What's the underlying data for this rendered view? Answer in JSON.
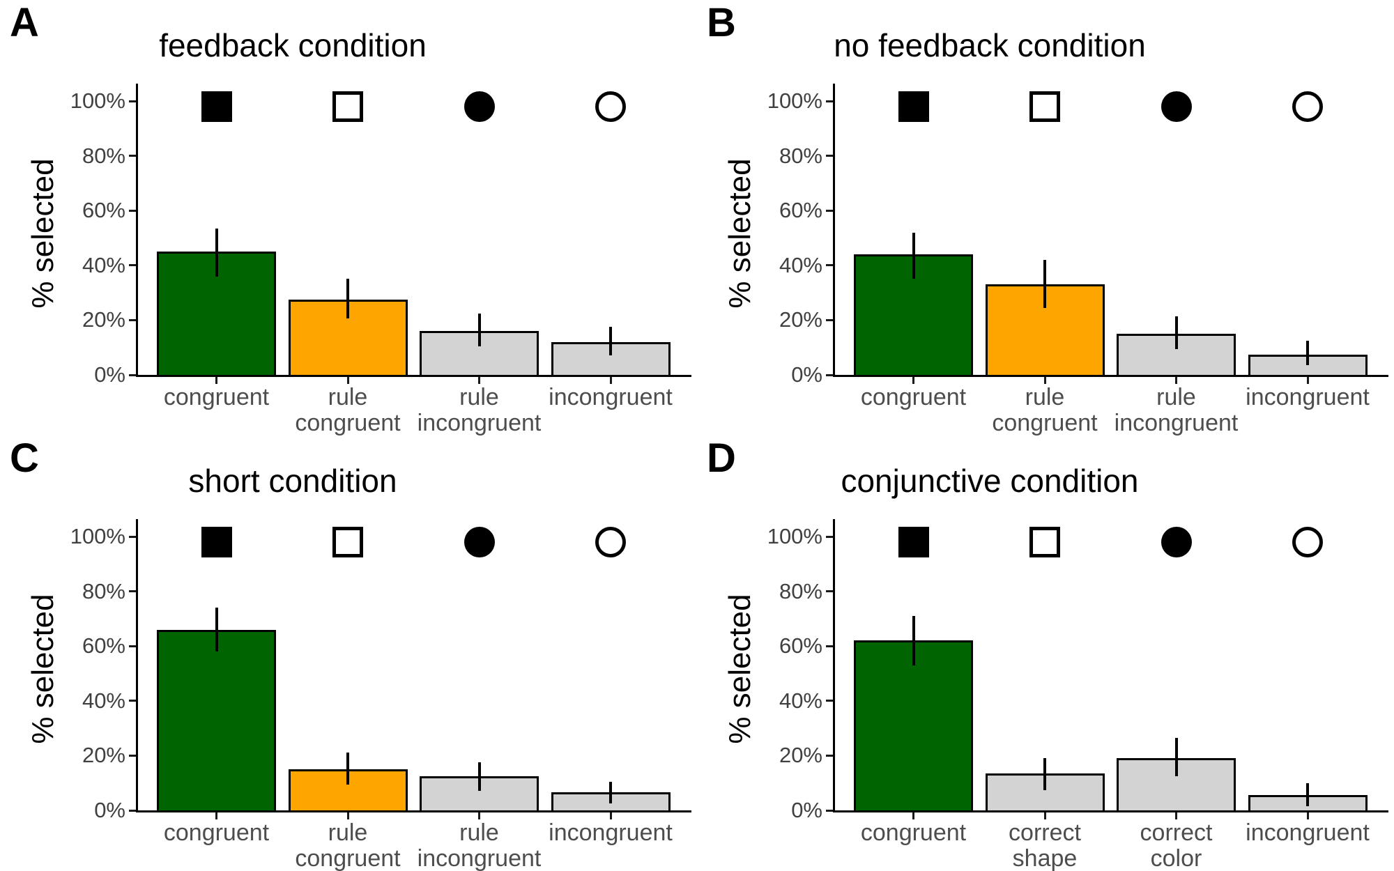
{
  "figure": {
    "background": "#ffffff",
    "accent_colors": {
      "congruent_bar": "#006400",
      "rule_congruent_bar": "#FFA500",
      "neutral_bar": "#D3D3D3",
      "bar_border": "#000000",
      "error_bar": "#000000",
      "axis_text": "#4d4d4d"
    }
  },
  "chart_data": [
    {
      "type": "bar",
      "panel_label": "A",
      "title": "feedback condition",
      "xlabel": "",
      "ylabel": "% selected",
      "ylim": [
        0,
        100
      ],
      "grid": false,
      "legend_position": "none",
      "y_tick_values": [
        0,
        20,
        40,
        60,
        80,
        100
      ],
      "y_tick_labels": [
        "0%",
        "20%",
        "40%",
        "60%",
        "80%",
        "100%"
      ],
      "categories": [
        "congruent",
        "rule congruent",
        "rule incongruent",
        "incongruent"
      ],
      "category_lines": [
        [
          "congruent"
        ],
        [
          "rule",
          "congruent"
        ],
        [
          "rule",
          "incongruent"
        ],
        [
          "incongruent"
        ]
      ],
      "values": [
        45,
        27.5,
        16,
        12
      ],
      "error_low": [
        36,
        20.5,
        10.5,
        7
      ],
      "error_high": [
        53.5,
        35,
        22.5,
        17.5
      ],
      "bar_colors": [
        "#006400",
        "#FFA500",
        "#D3D3D3",
        "#D3D3D3"
      ],
      "markers": [
        "filled-square",
        "open-square",
        "filled-circle",
        "open-circle"
      ],
      "marker_y_percent": 98
    },
    {
      "type": "bar",
      "panel_label": "B",
      "title": "no feedback condition",
      "xlabel": "",
      "ylabel": "% selected",
      "ylim": [
        0,
        100
      ],
      "grid": false,
      "legend_position": "none",
      "y_tick_values": [
        0,
        20,
        40,
        60,
        80,
        100
      ],
      "y_tick_labels": [
        "0%",
        "20%",
        "40%",
        "60%",
        "80%",
        "100%"
      ],
      "categories": [
        "congruent",
        "rule congruent",
        "rule incongruent",
        "incongruent"
      ],
      "category_lines": [
        [
          "congruent"
        ],
        [
          "rule",
          "congruent"
        ],
        [
          "rule",
          "incongruent"
        ],
        [
          "incongruent"
        ]
      ],
      "values": [
        44,
        33,
        15,
        7.5
      ],
      "error_low": [
        35,
        24.5,
        9.5,
        3.5
      ],
      "error_high": [
        52,
        42,
        21.5,
        12.5
      ],
      "bar_colors": [
        "#006400",
        "#FFA500",
        "#D3D3D3",
        "#D3D3D3"
      ],
      "markers": [
        "filled-square",
        "open-square",
        "filled-circle",
        "open-circle"
      ],
      "marker_y_percent": 98
    },
    {
      "type": "bar",
      "panel_label": "C",
      "title": "short condition",
      "xlabel": "",
      "ylabel": "% selected",
      "ylim": [
        0,
        100
      ],
      "grid": false,
      "legend_position": "none",
      "y_tick_values": [
        0,
        20,
        40,
        60,
        80,
        100
      ],
      "y_tick_labels": [
        "0%",
        "20%",
        "40%",
        "60%",
        "80%",
        "100%"
      ],
      "categories": [
        "congruent",
        "rule congruent",
        "rule incongruent",
        "incongruent"
      ],
      "category_lines": [
        [
          "congruent"
        ],
        [
          "rule",
          "congruent"
        ],
        [
          "rule",
          "incongruent"
        ],
        [
          "incongruent"
        ]
      ],
      "values": [
        66,
        15,
        12.5,
        6.5
      ],
      "error_low": [
        58,
        9.5,
        7,
        2.5
      ],
      "error_high": [
        74,
        21,
        17.5,
        10.5
      ],
      "bar_colors": [
        "#006400",
        "#FFA500",
        "#D3D3D3",
        "#D3D3D3"
      ],
      "markers": [
        "filled-square",
        "open-square",
        "filled-circle",
        "open-circle"
      ],
      "marker_y_percent": 98
    },
    {
      "type": "bar",
      "panel_label": "D",
      "title": "conjunctive condition",
      "xlabel": "",
      "ylabel": "% selected",
      "ylim": [
        0,
        100
      ],
      "grid": false,
      "legend_position": "none",
      "y_tick_values": [
        0,
        20,
        40,
        60,
        80,
        100
      ],
      "y_tick_labels": [
        "0%",
        "20%",
        "40%",
        "60%",
        "80%",
        "100%"
      ],
      "categories": [
        "congruent",
        "correct shape",
        "correct color",
        "incongruent"
      ],
      "category_lines": [
        [
          "congruent"
        ],
        [
          "correct",
          "shape"
        ],
        [
          "correct",
          "color"
        ],
        [
          "incongruent"
        ]
      ],
      "values": [
        62,
        13.5,
        19,
        5.5
      ],
      "error_low": [
        53,
        7.5,
        12.5,
        1.5
      ],
      "error_high": [
        71,
        19,
        26.5,
        10
      ],
      "bar_colors": [
        "#006400",
        "#D3D3D3",
        "#D3D3D3",
        "#D3D3D3"
      ],
      "markers": [
        "filled-square",
        "open-square",
        "filled-circle",
        "open-circle"
      ],
      "marker_y_percent": 98
    }
  ]
}
